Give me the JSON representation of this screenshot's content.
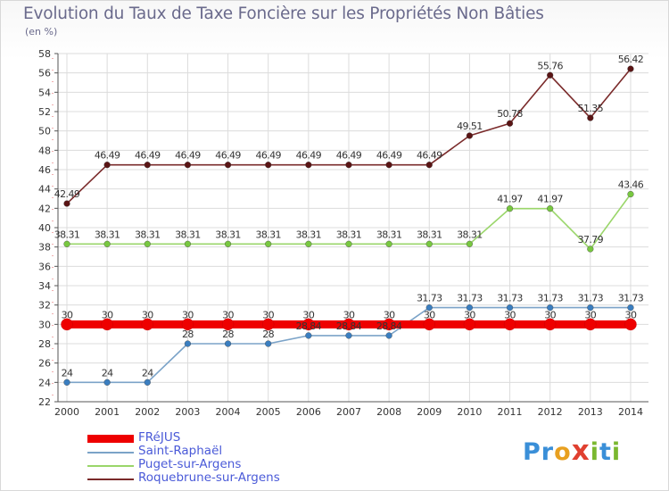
{
  "title": "Evolution du Taux de Taxe Foncière sur les Propriétés Non Bâties",
  "unit": "(en %)",
  "brand": {
    "letters": [
      "P",
      "r",
      "o",
      "x",
      "i",
      "t",
      "i"
    ],
    "colors": [
      "#3a8fd8",
      "#3a8fd8",
      "#e8a020",
      "#e04030",
      "#7ab830",
      "#3a8fd8",
      "#7ab830"
    ]
  },
  "chart_data": {
    "type": "line",
    "title": "Evolution du Taux de Taxe Foncière sur les Propriétés Non Bâties",
    "ylabel": "(en %)",
    "xlabel": "",
    "categories": [
      "2000",
      "2001",
      "2002",
      "2003",
      "2004",
      "2005",
      "2006",
      "2007",
      "2008",
      "2009",
      "2010",
      "2011",
      "2012",
      "2013",
      "2014"
    ],
    "ylim": [
      22,
      58
    ],
    "yticks": [
      "22",
      "24",
      "26",
      "28",
      "30",
      "32",
      "34",
      "36",
      "38",
      "40",
      "42",
      "44",
      "46",
      "48",
      "50",
      "52",
      "54",
      "56",
      "58"
    ],
    "grid": true,
    "series": [
      {
        "name": "FRéJUS",
        "color": "#ee0000",
        "values": [
          30,
          30,
          30,
          30,
          30,
          30,
          30,
          30,
          30,
          30,
          30,
          30,
          30,
          30,
          30
        ],
        "labels": [
          "30",
          "30",
          "30",
          "30",
          "30",
          "30",
          "30",
          "30",
          "30",
          "30",
          "30",
          "30",
          "30",
          "30",
          "30"
        ]
      },
      {
        "name": "Saint-Raphaël",
        "color": "#7ba3c8",
        "marker": "#3a7ec0",
        "values": [
          24,
          24,
          24,
          28,
          28,
          28,
          28.84,
          28.84,
          28.84,
          31.73,
          31.73,
          31.73,
          31.73,
          31.73,
          31.73
        ],
        "labels": [
          "24",
          "24",
          "24",
          "28",
          "28",
          "28",
          "28.84",
          "28.84",
          "28.84",
          "31.73",
          "31.73",
          "31.73",
          "31.73",
          "31.73",
          "31.73"
        ]
      },
      {
        "name": "Puget-sur-Argens",
        "color": "#9ad66a",
        "marker": "#78c840",
        "values": [
          38.31,
          38.31,
          38.31,
          38.31,
          38.31,
          38.31,
          38.31,
          38.31,
          38.31,
          38.31,
          38.31,
          41.97,
          41.97,
          37.79,
          43.46
        ],
        "labels": [
          "38.31",
          "38.31",
          "38.31",
          "38.31",
          "38.31",
          "38.31",
          "38.31",
          "38.31",
          "38.31",
          "38.31",
          "38.31",
          "41.97",
          "41.97",
          "37.79",
          "43.46"
        ]
      },
      {
        "name": "Roquebrune-sur-Argens",
        "color": "#7a2a2a",
        "marker": "#5a1414",
        "values": [
          42.49,
          46.49,
          46.49,
          46.49,
          46.49,
          46.49,
          46.49,
          46.49,
          46.49,
          46.49,
          49.51,
          50.78,
          55.76,
          51.35,
          56.42
        ],
        "labels": [
          "42.49",
          "46.49",
          "46.49",
          "46.49",
          "46.49",
          "46.49",
          "46.49",
          "46.49",
          "46.49",
          "46.49",
          "49.51",
          "50.78",
          "55.76",
          "51.35",
          "56.42"
        ]
      }
    ],
    "legend": "bottom-left"
  }
}
